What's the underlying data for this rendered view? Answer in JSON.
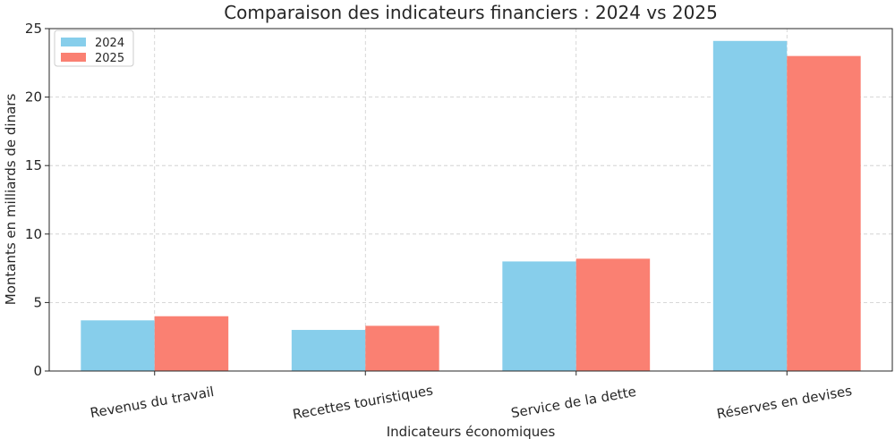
{
  "chart_data": {
    "type": "bar",
    "title": "Comparaison des indicateurs financiers : 2024 vs 2025",
    "xlabel": "Indicateurs économiques",
    "ylabel": "Montants en milliards de dinars",
    "categories": [
      "Revenus du travail",
      "Recettes touristiques",
      "Service de la dette",
      "Réserves en devises"
    ],
    "series": [
      {
        "name": "2024",
        "color": "#87ceeb",
        "values": [
          3.7,
          3.0,
          8.0,
          24.1
        ]
      },
      {
        "name": "2025",
        "color": "#fa8072",
        "values": [
          4.0,
          3.3,
          8.2,
          23.0
        ]
      }
    ],
    "ylim": [
      0,
      25
    ],
    "yticks": [
      0,
      5,
      10,
      15,
      20,
      25
    ],
    "grid": true,
    "legend": "top-left"
  }
}
